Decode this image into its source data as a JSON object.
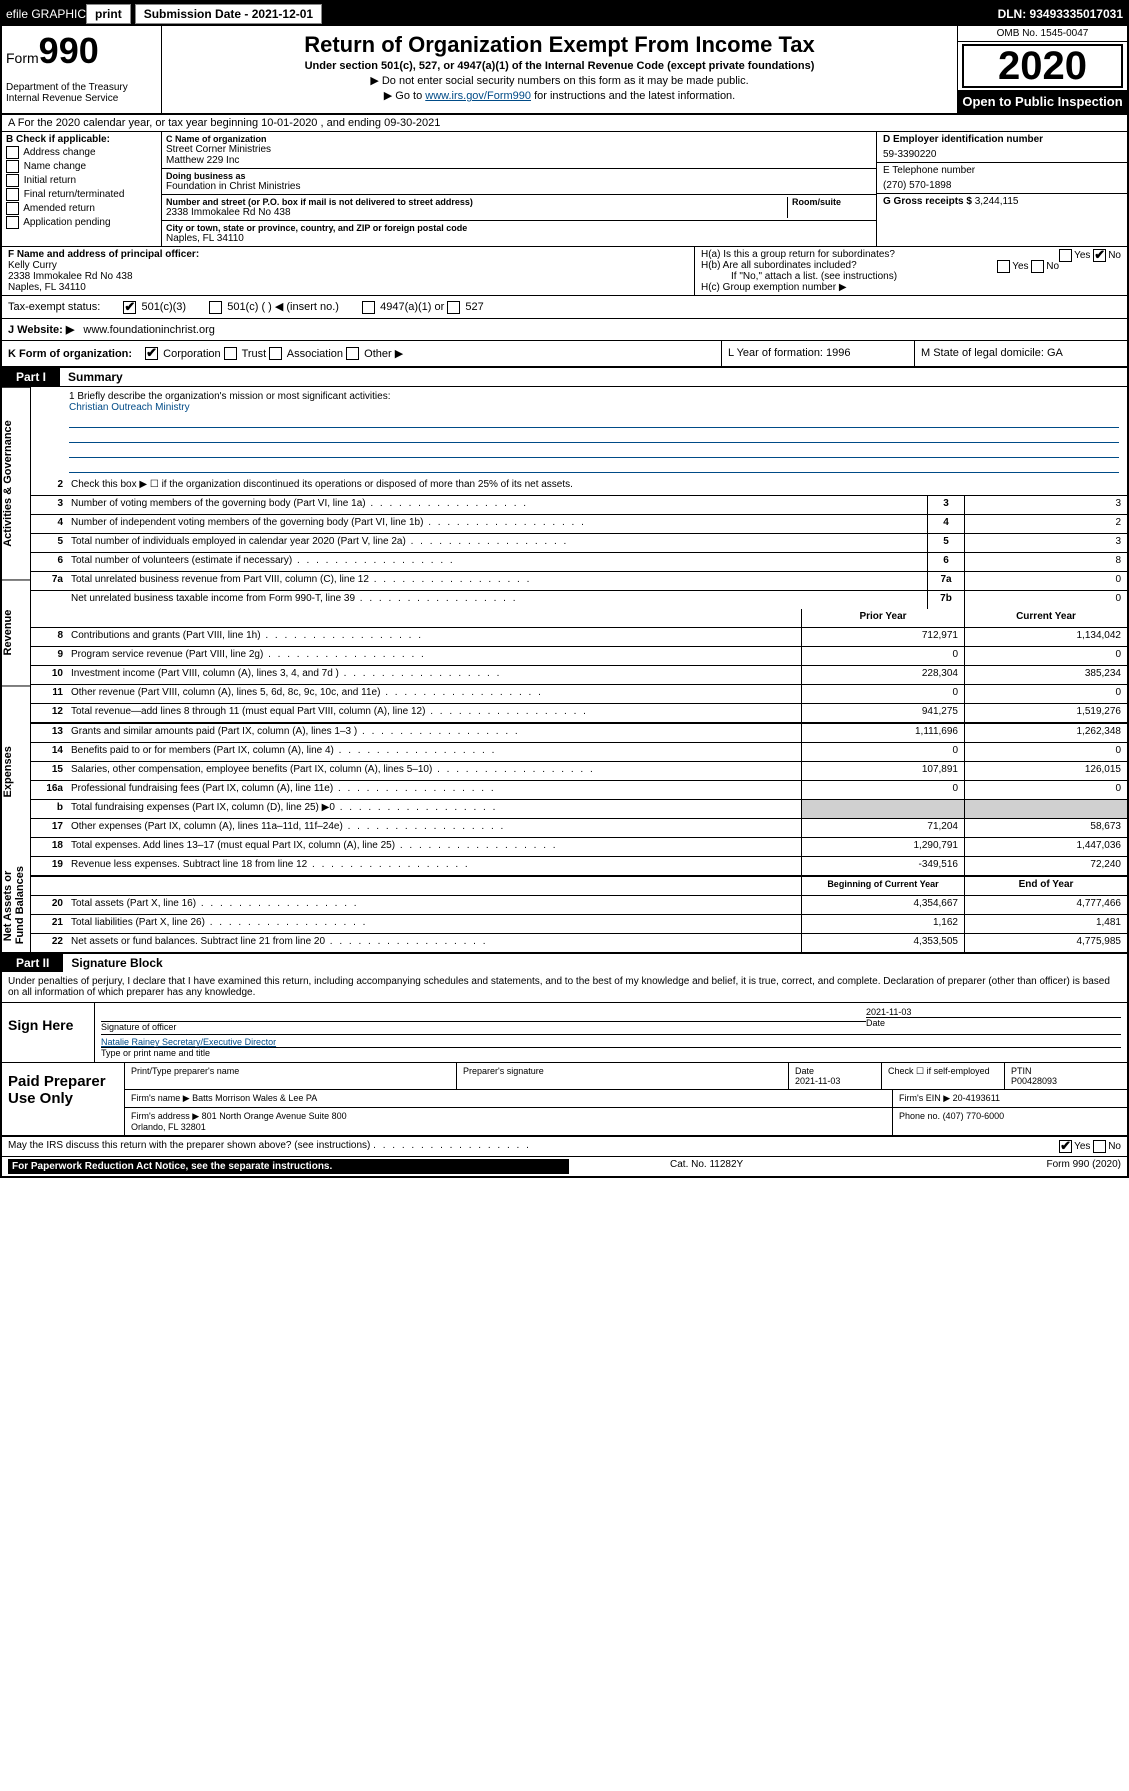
{
  "top_bar": {
    "efile_label": "efile GRAPHIC",
    "print_btn": "print",
    "submission_label": "Submission Date - 2021-12-01",
    "dln": "DLN: 93493335017031"
  },
  "header": {
    "form_label": "Form",
    "form_number": "990",
    "dept": "Department of the Treasury\nInternal Revenue Service",
    "title": "Return of Organization Exempt From Income Tax",
    "subtitle": "Under section 501(c), 527, or 4947(a)(1) of the Internal Revenue Code (except private foundations)",
    "warn1": "Do not enter social security numbers on this form as it may be made public.",
    "warn2_prefix": "Go to ",
    "warn2_link": "www.irs.gov/Form990",
    "warn2_suffix": " for instructions and the latest information.",
    "omb": "OMB No. 1545-0047",
    "year": "2020",
    "open_public": "Open to Public Inspection"
  },
  "line_a": "A For the 2020 calendar year, or tax year beginning 10-01-2020   , and ending 09-30-2021",
  "section_b": {
    "header": "B Check if applicable:",
    "items": [
      "Address change",
      "Name change",
      "Initial return",
      "Final return/terminated",
      "Amended return",
      "Application pending"
    ]
  },
  "section_c": {
    "name_label": "C Name of organization",
    "name": "Street Corner Ministries\nMatthew 229 Inc",
    "dba_label": "Doing business as",
    "dba": "Foundation in Christ Ministries",
    "addr_label": "Number and street (or P.O. box if mail is not delivered to street address)",
    "room_label": "Room/suite",
    "addr": "2338 Immokalee Rd No 438",
    "city_label": "City or town, state or province, country, and ZIP or foreign postal code",
    "city": "Naples, FL  34110"
  },
  "section_d": {
    "label": "D Employer identification number",
    "value": "59-3390220"
  },
  "section_e": {
    "label": "E Telephone number",
    "value": "(270) 570-1898"
  },
  "section_g": {
    "label": "G Gross receipts $",
    "value": "3,244,115"
  },
  "section_f": {
    "label": "F  Name and address of principal officer:",
    "name": "Kelly Curry",
    "addr": "2338 Immokalee Rd No 438\nNaples, FL  34110"
  },
  "section_h": {
    "a": "H(a)  Is this a group return for subordinates?",
    "a_yes": "Yes",
    "a_no": "No",
    "b": "H(b)  Are all subordinates included?",
    "b_yes": "Yes",
    "b_no": "No",
    "b_note": "If \"No,\" attach a list. (see instructions)",
    "c": "H(c)  Group exemption number ▶"
  },
  "tax_status": {
    "label": "Tax-exempt status:",
    "opt1": "501(c)(3)",
    "opt2": "501(c) (   ) ◀ (insert no.)",
    "opt3": "4947(a)(1) or",
    "opt4": "527"
  },
  "website": {
    "label": "J   Website: ▶",
    "value": "www.foundationinchrist.org"
  },
  "k_row": {
    "k": "K Form of organization:",
    "opts": [
      "Corporation",
      "Trust",
      "Association",
      "Other ▶"
    ],
    "l": "L Year of formation: 1996",
    "m": "M State of legal domicile: GA"
  },
  "part1": {
    "tab": "Part I",
    "title": "Summary"
  },
  "vlabels": [
    "Activities & Governance",
    "Revenue",
    "Expenses",
    "Net Assets or Fund Balances"
  ],
  "mission": {
    "prompt": "1  Briefly describe the organization's mission or most significant activities:",
    "text": "Christian Outreach Ministry"
  },
  "lines_top": [
    {
      "n": "2",
      "d": "Check this box ▶ ☐  if the organization discontinued its operations or disposed of more than 25% of its net assets."
    },
    {
      "n": "3",
      "d": "Number of voting members of the governing body (Part VI, line 1a)",
      "box": "3",
      "v": "3"
    },
    {
      "n": "4",
      "d": "Number of independent voting members of the governing body (Part VI, line 1b)",
      "box": "4",
      "v": "2"
    },
    {
      "n": "5",
      "d": "Total number of individuals employed in calendar year 2020 (Part V, line 2a)",
      "box": "5",
      "v": "3"
    },
    {
      "n": "6",
      "d": "Total number of volunteers (estimate if necessary)",
      "box": "6",
      "v": "8"
    },
    {
      "n": "7a",
      "d": "Total unrelated business revenue from Part VIII, column (C), line 12",
      "box": "7a",
      "v": "0"
    },
    {
      "n": "",
      "d": "Net unrelated business taxable income from Form 990-T, line 39",
      "box": "7b",
      "v": "0"
    }
  ],
  "col_hdrs": {
    "prior": "Prior Year",
    "current": "Current Year"
  },
  "lines_rev": [
    {
      "n": "8",
      "d": "Contributions and grants (Part VIII, line 1h)",
      "p": "712,971",
      "c": "1,134,042"
    },
    {
      "n": "9",
      "d": "Program service revenue (Part VIII, line 2g)",
      "p": "0",
      "c": "0"
    },
    {
      "n": "10",
      "d": "Investment income (Part VIII, column (A), lines 3, 4, and 7d )",
      "p": "228,304",
      "c": "385,234"
    },
    {
      "n": "11",
      "d": "Other revenue (Part VIII, column (A), lines 5, 6d, 8c, 9c, 10c, and 11e)",
      "p": "0",
      "c": "0"
    },
    {
      "n": "12",
      "d": "Total revenue—add lines 8 through 11 (must equal Part VIII, column (A), line 12)",
      "p": "941,275",
      "c": "1,519,276"
    }
  ],
  "lines_exp": [
    {
      "n": "13",
      "d": "Grants and similar amounts paid (Part IX, column (A), lines 1–3 )",
      "p": "1,111,696",
      "c": "1,262,348"
    },
    {
      "n": "14",
      "d": "Benefits paid to or for members (Part IX, column (A), line 4)",
      "p": "0",
      "c": "0"
    },
    {
      "n": "15",
      "d": "Salaries, other compensation, employee benefits (Part IX, column (A), lines 5–10)",
      "p": "107,891",
      "c": "126,015"
    },
    {
      "n": "16a",
      "d": "Professional fundraising fees (Part IX, column (A), line 11e)",
      "p": "0",
      "c": "0"
    },
    {
      "n": "b",
      "d": "Total fundraising expenses (Part IX, column (D), line 25) ▶0",
      "p": "",
      "c": "",
      "gray": true
    },
    {
      "n": "17",
      "d": "Other expenses (Part IX, column (A), lines 11a–11d, 11f–24e)",
      "p": "71,204",
      "c": "58,673"
    },
    {
      "n": "18",
      "d": "Total expenses. Add lines 13–17 (must equal Part IX, column (A), line 25)",
      "p": "1,290,791",
      "c": "1,447,036"
    },
    {
      "n": "19",
      "d": "Revenue less expenses. Subtract line 18 from line 12",
      "p": "-349,516",
      "c": "72,240"
    }
  ],
  "col_hdrs2": {
    "prior": "Beginning of Current Year",
    "current": "End of Year"
  },
  "lines_net": [
    {
      "n": "20",
      "d": "Total assets (Part X, line 16)",
      "p": "4,354,667",
      "c": "4,777,466"
    },
    {
      "n": "21",
      "d": "Total liabilities (Part X, line 26)",
      "p": "1,162",
      "c": "1,481"
    },
    {
      "n": "22",
      "d": "Net assets or fund balances. Subtract line 21 from line 20",
      "p": "4,353,505",
      "c": "4,775,985"
    }
  ],
  "part2": {
    "tab": "Part II",
    "title": "Signature Block"
  },
  "perjury": "Under penalties of perjury, I declare that I have examined this return, including accompanying schedules and statements, and to the best of my knowledge and belief, it is true, correct, and complete. Declaration of preparer (other than officer) is based on all information of which preparer has any knowledge.",
  "sign": {
    "here": "Sign Here",
    "sig_label": "Signature of officer",
    "date": "2021-11-03",
    "date_label": "Date",
    "name": "Natalie Rainey  Secretary/Executive Director",
    "name_label": "Type or print name and title"
  },
  "paid": {
    "left": "Paid Preparer Use Only",
    "h_name": "Print/Type preparer's name",
    "h_sig": "Preparer's signature",
    "h_date": "Date",
    "date": "2021-11-03",
    "self": "Check ☐ if self-employed",
    "ptin_label": "PTIN",
    "ptin": "P00428093",
    "firm_label": "Firm's name    ▶",
    "firm": "Batts Morrison Wales & Lee PA",
    "ein_label": "Firm's EIN ▶",
    "ein": "20-4193611",
    "addr_label": "Firm's address ▶",
    "addr": "801 North Orange Avenue Suite 800\nOrlando, FL  32801",
    "phone_label": "Phone no.",
    "phone": "(407) 770-6000"
  },
  "discuss": {
    "q": "May the IRS discuss this return with the preparer shown above? (see instructions)",
    "yes": "Yes",
    "no": "No"
  },
  "footer": {
    "notice": "For Paperwork Reduction Act Notice, see the separate instructions.",
    "cat": "Cat. No. 11282Y",
    "form": "Form 990 (2020)"
  }
}
